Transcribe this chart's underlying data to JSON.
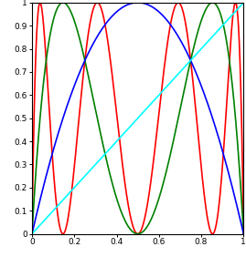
{
  "title": "",
  "xlim": [
    0,
    1
  ],
  "ylim": [
    0,
    1
  ],
  "xticks": [
    0,
    0.2,
    0.4,
    0.6,
    0.8,
    1
  ],
  "yticks": [
    0,
    0.1,
    0.2,
    0.3,
    0.4,
    0.5,
    0.6,
    0.7,
    0.8,
    0.9,
    1
  ],
  "bisector_color": "cyan",
  "f1_color": "blue",
  "f2_color": "green",
  "f3_color": "red",
  "linewidth": 1.2,
  "background_color": "#ffffff",
  "n_points": 3000
}
